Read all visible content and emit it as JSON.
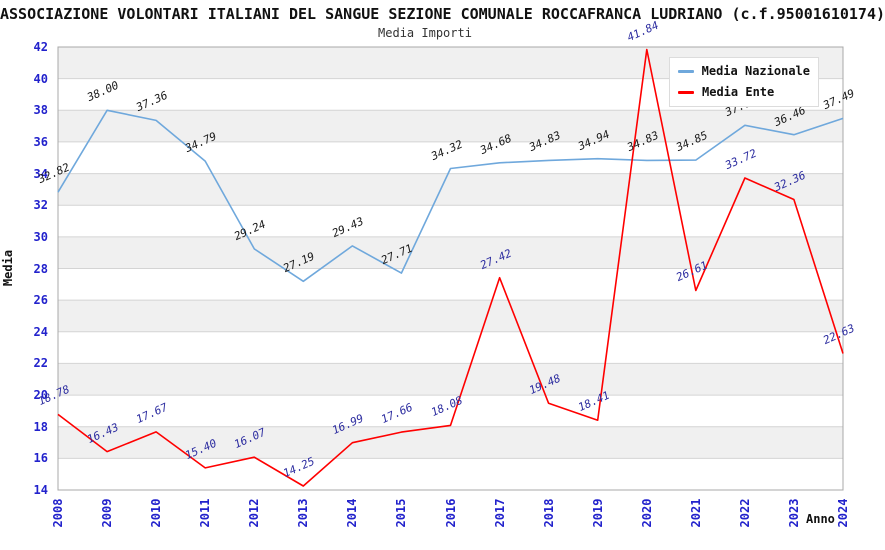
{
  "header": {
    "title": "ASSOCIAZIONE VOLONTARI ITALIANI DEL SANGUE SEZIONE COMUNALE ROCCAFRANCA LUDRIANO (c.f.95001610174)",
    "subtitle": "Media Importi"
  },
  "axes": {
    "y_title": "Media",
    "x_title": "Anno"
  },
  "chart_data": {
    "type": "line",
    "title": "Media Importi",
    "xlabel": "Anno",
    "ylabel": "Media",
    "ylim": [
      14,
      42
    ],
    "ytick_step": 2,
    "grid": "horizontal-stripes",
    "legend_position": "top-right",
    "band_color": "#f0f0f0",
    "gridline_color": "#d4d4d4",
    "border_color": "#a8a8a8",
    "tick_label_color": "#2222cc",
    "categories": [
      "2008",
      "2009",
      "2010",
      "2011",
      "2012",
      "2013",
      "2014",
      "2015",
      "2016",
      "2017",
      "2018",
      "2019",
      "2020",
      "2021",
      "2022",
      "2023",
      "2024"
    ],
    "series": [
      {
        "name": "Media Nazionale",
        "color": "#6FA8DC",
        "label_color": "#1a1a1a",
        "values": [
          32.82,
          38.0,
          37.36,
          34.79,
          29.24,
          27.19,
          29.43,
          27.71,
          34.32,
          34.68,
          34.83,
          34.94,
          34.83,
          34.85,
          37.05,
          36.46,
          37.49
        ]
      },
      {
        "name": "Media Ente",
        "color": "#FF0000",
        "label_color": "#2d2da0",
        "values": [
          18.78,
          16.43,
          17.67,
          15.4,
          16.07,
          14.25,
          16.99,
          17.66,
          18.08,
          27.42,
          19.48,
          18.41,
          41.84,
          26.61,
          33.72,
          32.36,
          22.63
        ]
      }
    ]
  }
}
